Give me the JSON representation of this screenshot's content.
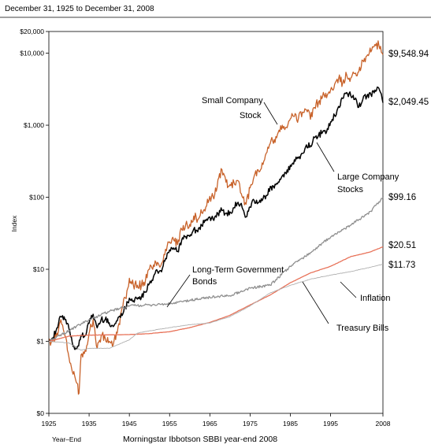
{
  "chart_data": {
    "type": "line",
    "date_range": "December 31, 1925 to December 31, 2008",
    "ylabel": "Index",
    "x_axis_note": "Year–End",
    "footer": "Morningstar Ibbotson SBBI year-end 2008",
    "y_scale": "log",
    "ylim": [
      0.1,
      20000
    ],
    "xlim": [
      1925,
      2008
    ],
    "y_ticks": [
      {
        "value": 0.1,
        "label": "$0"
      },
      {
        "value": 1,
        "label": "$1"
      },
      {
        "value": 10,
        "label": "$10"
      },
      {
        "value": 100,
        "label": "$100"
      },
      {
        "value": 1000,
        "label": "$1,000"
      },
      {
        "value": 10000,
        "label": "$10,000"
      },
      {
        "value": 20000,
        "label": "$20,000"
      }
    ],
    "x_ticks": [
      {
        "value": 1925,
        "label": "1925"
      },
      {
        "value": 1935,
        "label": "1935"
      },
      {
        "value": 1945,
        "label": "1945"
      },
      {
        "value": 1955,
        "label": "1955"
      },
      {
        "value": 1965,
        "label": "1965"
      },
      {
        "value": 1975,
        "label": "1975"
      },
      {
        "value": 1985,
        "label": "1985"
      },
      {
        "value": 1995,
        "label": "1995"
      },
      {
        "value": 2008,
        "label": "2008"
      }
    ],
    "series": [
      {
        "name": "Small Company Stocks",
        "annotation": [
          "Small Company",
          "Stock"
        ],
        "end_label": "$9,548.94",
        "color": "#c8622a",
        "width": 1.3,
        "x": [
          1925,
          1926,
          1927,
          1928,
          1929,
          1930,
          1931,
          1932,
          1932.5,
          1933,
          1934,
          1935,
          1936,
          1937,
          1938,
          1939,
          1940,
          1941,
          1942,
          1943,
          1944,
          1945,
          1946,
          1947,
          1948,
          1949,
          1950,
          1951,
          1952,
          1953,
          1954,
          1955,
          1956,
          1957,
          1958,
          1959,
          1960,
          1961,
          1962,
          1963,
          1964,
          1965,
          1966,
          1967,
          1968,
          1969,
          1970,
          1971,
          1972,
          1973,
          1974,
          1975,
          1976,
          1977,
          1978,
          1979,
          1980,
          1981,
          1982,
          1983,
          1984,
          1985,
          1986,
          1987,
          1988,
          1989,
          1990,
          1991,
          1992,
          1993,
          1994,
          1995,
          1996,
          1997,
          1998,
          1999,
          2000,
          2001,
          2002,
          2003,
          2004,
          2005,
          2006,
          2007,
          2008
        ],
        "y": [
          1.0,
          1.0,
          1.3,
          2.0,
          1.2,
          0.6,
          0.35,
          0.26,
          0.19,
          0.65,
          0.75,
          1.3,
          2.0,
          0.8,
          1.2,
          1.1,
          1.0,
          0.9,
          1.3,
          2.6,
          4.0,
          7.5,
          6.0,
          6.0,
          6.0,
          7.0,
          10.0,
          11.5,
          12.5,
          12.0,
          19.0,
          24.0,
          25.5,
          22.0,
          36.0,
          42.0,
          42.0,
          55.0,
          49.0,
          61.0,
          73.0,
          103.0,
          95.0,
          175.0,
          242.0,
          162.0,
          150.0,
          160.0,
          170.0,
          103.0,
          80.0,
          135.0,
          195.0,
          240.0,
          300.0,
          410.0,
          560.0,
          635.0,
          800.0,
          1000.0,
          940.0,
          1230.0,
          1320.0,
          1240.0,
          1520.0,
          1640.0,
          1210.0,
          1760.0,
          2100.0,
          2500.0,
          2400.0,
          3100.0,
          3700.0,
          4450.0,
          3850.0,
          5000.0,
          4500.0,
          5200.0,
          5500.0,
          7900.0,
          9200.0,
          10400.0,
          13200.0,
          12800.0,
          9548.94
        ]
      },
      {
        "name": "Large Company Stocks",
        "annotation": [
          "Large Company",
          "Stocks"
        ],
        "end_label": "$2,049.45",
        "color": "#000000",
        "width": 1.5,
        "x": [
          1925,
          1926,
          1927,
          1928,
          1929,
          1930,
          1931,
          1932,
          1933,
          1934,
          1935,
          1936,
          1937,
          1938,
          1939,
          1940,
          1941,
          1942,
          1943,
          1944,
          1945,
          1946,
          1947,
          1948,
          1949,
          1950,
          1951,
          1952,
          1953,
          1954,
          1955,
          1956,
          1957,
          1958,
          1959,
          1960,
          1961,
          1962,
          1963,
          1964,
          1965,
          1966,
          1967,
          1968,
          1969,
          1970,
          1971,
          1972,
          1973,
          1974,
          1975,
          1976,
          1977,
          1978,
          1979,
          1980,
          1981,
          1982,
          1983,
          1984,
          1985,
          1986,
          1987,
          1988,
          1989,
          1990,
          1991,
          1992,
          1993,
          1994,
          1995,
          1996,
          1997,
          1998,
          1999,
          2000,
          2001,
          2002,
          2003,
          2004,
          2005,
          2006,
          2007,
          2008
        ],
        "y": [
          1.0,
          1.12,
          1.53,
          2.2,
          2.0,
          1.5,
          0.85,
          0.79,
          1.21,
          1.2,
          1.78,
          2.38,
          1.54,
          2.02,
          2.01,
          1.81,
          1.6,
          1.93,
          2.43,
          2.91,
          3.97,
          3.65,
          3.86,
          4.07,
          4.83,
          6.36,
          7.89,
          9.34,
          9.24,
          14.1,
          18.6,
          19.8,
          17.7,
          25.4,
          28.4,
          28.6,
          36.3,
          33.1,
          40.6,
          47.3,
          53.2,
          47.8,
          59.3,
          65.8,
          60.2,
          62.6,
          71.6,
          85.2,
          72.7,
          53.4,
          73.3,
          90.5,
          84.0,
          89.6,
          106.0,
          141.0,
          134.0,
          163.0,
          199.0,
          212.0,
          279.0,
          331.0,
          349.0,
          406.0,
          534.0,
          518.0,
          675.0,
          727.0,
          800.0,
          810.0,
          1113.0,
          1370.0,
          1828.0,
          2350.0,
          2845.0,
          2586.0,
          2279.0,
          1775.0,
          2285.0,
          2533.0,
          2658.0,
          3077.0,
          3246.0,
          2049.45
        ]
      },
      {
        "name": "Long-Term Government Bonds",
        "annotation": [
          "Long-Term Government",
          "Bonds"
        ],
        "end_label": "$99.16",
        "color": "#8f8f8f",
        "width": 1.3,
        "x": [
          1925,
          1930,
          1935,
          1940,
          1945,
          1950,
          1955,
          1960,
          1965,
          1970,
          1975,
          1980,
          1985,
          1990,
          1995,
          2000,
          2005,
          2008
        ],
        "y": [
          1.0,
          1.4,
          2.0,
          2.6,
          3.1,
          3.2,
          3.3,
          3.7,
          4.1,
          4.3,
          5.5,
          6.0,
          11.0,
          17.0,
          28.0,
          41.0,
          64.0,
          99.16
        ]
      },
      {
        "name": "Treasury Bills",
        "annotation": [
          "Treasury Bills"
        ],
        "end_label": "$20.51",
        "color": "#e8735a",
        "width": 1.3,
        "x": [
          1925,
          1930,
          1935,
          1940,
          1945,
          1950,
          1955,
          1960,
          1965,
          1970,
          1975,
          1980,
          1985,
          1990,
          1995,
          2000,
          2005,
          2008
        ],
        "y": [
          1.0,
          1.18,
          1.22,
          1.23,
          1.24,
          1.28,
          1.36,
          1.55,
          1.83,
          2.3,
          3.2,
          4.4,
          6.5,
          8.9,
          11.0,
          15.0,
          17.5,
          20.51
        ]
      },
      {
        "name": "Inflation",
        "annotation": [
          "Inflation"
        ],
        "end_label": "$11.73",
        "color": "#b0b0b0",
        "width": 0.9,
        "x": [
          1925,
          1930,
          1933,
          1935,
          1940,
          1945,
          1947,
          1950,
          1955,
          1960,
          1965,
          1970,
          1975,
          1980,
          1985,
          1990,
          1995,
          2000,
          2005,
          2008
        ],
        "y": [
          1.0,
          0.95,
          0.75,
          0.8,
          0.8,
          1.05,
          1.3,
          1.4,
          1.55,
          1.7,
          1.8,
          2.2,
          3.1,
          4.7,
          6.0,
          7.3,
          8.3,
          9.3,
          10.7,
          11.73
        ]
      }
    ]
  }
}
